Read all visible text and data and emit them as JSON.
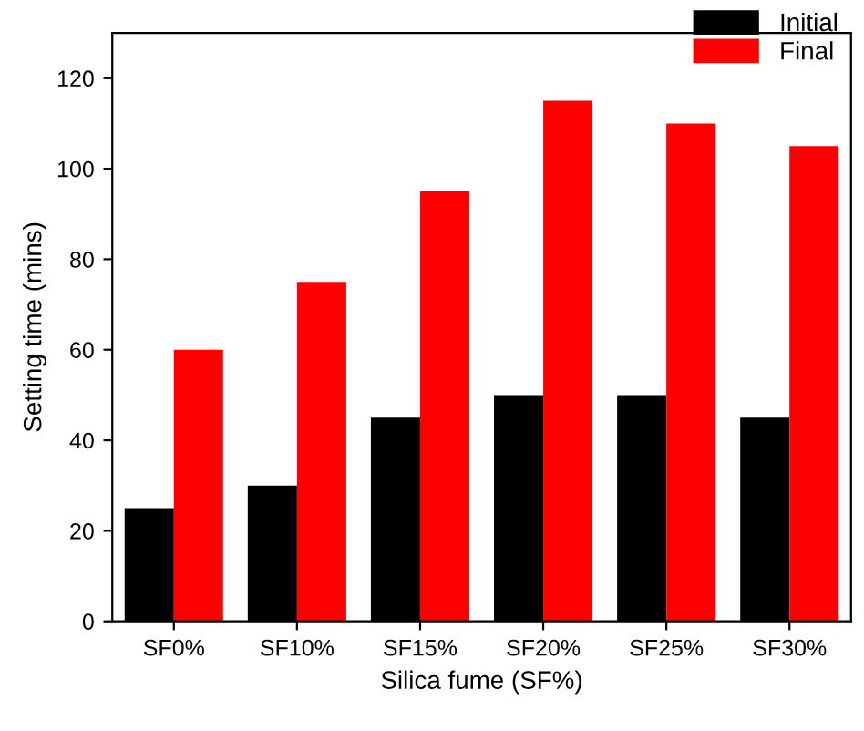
{
  "chart_data": {
    "type": "bar",
    "xlabel": "Silica fume (SF%)",
    "ylabel": "Setting time (mins)",
    "categories": [
      "SF0%",
      "SF10%",
      "SF15%",
      "SF20%",
      "SF25%",
      "SF30%"
    ],
    "series": [
      {
        "name": "Initial",
        "color": "#000000",
        "values": [
          25,
          30,
          45,
          50,
          50,
          45
        ]
      },
      {
        "name": "Final",
        "color": "#ff0000",
        "values": [
          60,
          75,
          95,
          115,
          110,
          105
        ]
      }
    ],
    "ylim": [
      0,
      130
    ],
    "yticks": [
      0,
      20,
      40,
      60,
      80,
      100,
      120
    ],
    "grid": false,
    "legend": "top right"
  }
}
